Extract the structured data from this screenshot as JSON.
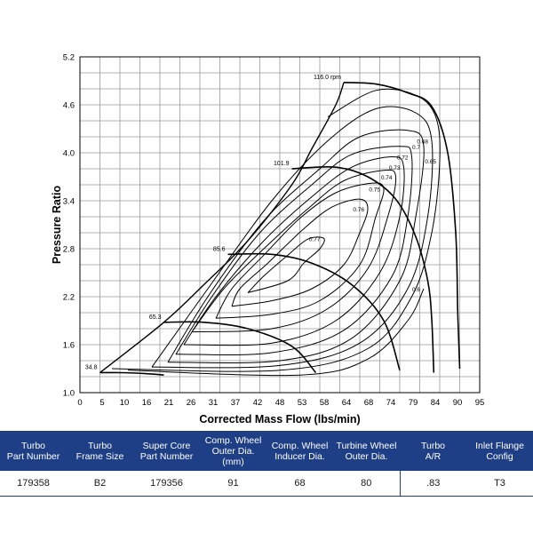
{
  "colors": {
    "header_bg": "#1e3f86",
    "grid": "#999999",
    "line": "#000000"
  },
  "chart_data": {
    "type": "line",
    "title": "",
    "xlabel": "Corrected Mass Flow (lbs/min)",
    "ylabel": "Pressure Ratio",
    "xlim": [
      0,
      100
    ],
    "ylim": [
      1.0,
      5.2
    ],
    "xticks": [
      0,
      5,
      10,
      16,
      21,
      26,
      31,
      37,
      42,
      48,
      53,
      58,
      64,
      68,
      74,
      79,
      84,
      90,
      95
    ],
    "yticks": [
      1.0,
      1.6,
      2.2,
      2.8,
      3.4,
      4.0,
      4.6,
      5.2
    ],
    "grid": true,
    "surge_line": [
      [
        5,
        1.25
      ],
      [
        21,
        1.88
      ],
      [
        31,
        2.35
      ],
      [
        42,
        2.9
      ],
      [
        53,
        3.6
      ],
      [
        58,
        4.05
      ],
      [
        64,
        4.6
      ],
      [
        66,
        4.88
      ]
    ],
    "speed_lines": [
      {
        "label": "34.8",
        "points": [
          [
            5,
            1.25
          ],
          [
            10,
            1.25
          ],
          [
            16,
            1.24
          ],
          [
            21,
            1.22
          ]
        ]
      },
      {
        "label": "65.3",
        "points": [
          [
            21,
            1.88
          ],
          [
            31,
            1.88
          ],
          [
            42,
            1.8
          ],
          [
            53,
            1.58
          ],
          [
            59,
            1.25
          ]
        ]
      },
      {
        "label": "85.6",
        "points": [
          [
            37,
            2.73
          ],
          [
            48,
            2.73
          ],
          [
            58,
            2.62
          ],
          [
            68,
            2.35
          ],
          [
            76,
            1.9
          ],
          [
            80,
            1.28
          ]
        ]
      },
      {
        "label": "101.9",
        "points": [
          [
            53,
            3.8
          ],
          [
            64,
            3.82
          ],
          [
            72,
            3.7
          ],
          [
            79,
            3.42
          ],
          [
            84,
            2.95
          ],
          [
            87,
            2.4
          ],
          [
            88,
            1.92
          ],
          [
            88.5,
            1.25
          ]
        ]
      },
      {
        "label": "116.0",
        "points": [
          [
            66,
            4.88
          ],
          [
            74,
            4.86
          ],
          [
            82,
            4.75
          ],
          [
            88,
            4.58
          ],
          [
            92,
            4.0
          ],
          [
            94,
            3.0
          ],
          [
            94.5,
            2.0
          ],
          [
            95,
            1.3
          ]
        ]
      }
    ],
    "efficiency_islands": [
      {
        "label": "0.77",
        "points": [
          [
            42,
            2.25
          ],
          [
            52,
            2.4
          ],
          [
            56,
            2.62
          ],
          [
            60,
            2.8
          ],
          [
            61,
            2.93
          ],
          [
            57,
            2.92
          ],
          [
            52,
            2.72
          ],
          [
            46,
            2.46
          ],
          [
            42,
            2.25
          ]
        ]
      },
      {
        "label": "0.76",
        "points": [
          [
            38,
            2.08
          ],
          [
            48,
            2.15
          ],
          [
            58,
            2.3
          ],
          [
            66,
            2.6
          ],
          [
            70,
            3.0
          ],
          [
            72,
            3.3
          ],
          [
            70,
            3.42
          ],
          [
            63,
            3.32
          ],
          [
            56,
            3.05
          ],
          [
            47,
            2.62
          ],
          [
            40,
            2.3
          ],
          [
            38,
            2.08
          ]
        ]
      },
      {
        "label": "0.75",
        "points": [
          [
            34,
            1.93
          ],
          [
            48,
            1.98
          ],
          [
            60,
            2.15
          ],
          [
            70,
            2.6
          ],
          [
            74,
            3.2
          ],
          [
            76,
            3.55
          ],
          [
            73,
            3.62
          ],
          [
            64,
            3.5
          ],
          [
            55,
            3.18
          ],
          [
            46,
            2.72
          ],
          [
            38,
            2.3
          ],
          [
            34,
            1.93
          ]
        ]
      },
      {
        "label": "0.74",
        "points": [
          [
            28,
            1.76
          ],
          [
            48,
            1.8
          ],
          [
            62,
            2.05
          ],
          [
            72,
            2.55
          ],
          [
            77,
            3.2
          ],
          [
            79,
            3.7
          ],
          [
            76,
            3.78
          ],
          [
            66,
            3.65
          ],
          [
            57,
            3.3
          ],
          [
            46,
            2.8
          ],
          [
            36,
            2.3
          ],
          [
            28,
            1.76
          ]
        ]
      },
      {
        "label": "0.73",
        "points": [
          [
            26,
            1.6
          ],
          [
            48,
            1.62
          ],
          [
            64,
            1.9
          ],
          [
            75,
            2.5
          ],
          [
            80,
            3.2
          ],
          [
            81,
            3.82
          ],
          [
            78,
            3.95
          ],
          [
            68,
            3.82
          ],
          [
            58,
            3.45
          ],
          [
            46,
            2.9
          ],
          [
            34,
            2.2
          ],
          [
            26,
            1.6
          ]
        ]
      },
      {
        "label": "0.72",
        "points": [
          [
            24,
            1.48
          ],
          [
            48,
            1.5
          ],
          [
            66,
            1.78
          ],
          [
            78,
            2.45
          ],
          [
            82,
            3.2
          ],
          [
            83,
            3.95
          ],
          [
            80,
            4.08
          ],
          [
            68,
            3.98
          ],
          [
            58,
            3.6
          ],
          [
            45,
            3.0
          ],
          [
            33,
            2.2
          ],
          [
            24,
            1.48
          ]
        ]
      },
      {
        "label": "0.7",
        "points": [
          [
            22,
            1.38
          ],
          [
            50,
            1.4
          ],
          [
            68,
            1.68
          ],
          [
            80,
            2.4
          ],
          [
            84,
            3.2
          ],
          [
            86,
            4.08
          ],
          [
            82,
            4.28
          ],
          [
            70,
            4.2
          ],
          [
            60,
            3.8
          ],
          [
            46,
            3.15
          ],
          [
            32,
            2.2
          ],
          [
            22,
            1.38
          ]
        ]
      },
      {
        "label": "0.68",
        "points": [
          [
            18,
            1.32
          ],
          [
            50,
            1.34
          ],
          [
            70,
            1.62
          ],
          [
            82,
            2.3
          ],
          [
            87,
            3.2
          ],
          [
            88,
            4.15
          ],
          [
            84,
            4.5
          ],
          [
            74,
            4.55
          ],
          [
            62,
            4.15
          ],
          [
            48,
            3.4
          ],
          [
            32,
            2.3
          ],
          [
            18,
            1.32
          ]
        ]
      },
      {
        "label": "0.65",
        "points": [
          [
            8,
            1.3
          ],
          [
            50,
            1.28
          ],
          [
            72,
            1.55
          ],
          [
            83,
            2.2
          ],
          [
            88,
            3.0
          ],
          [
            90,
            3.9
          ],
          [
            89,
            4.45
          ],
          [
            84,
            4.72
          ],
          [
            74,
            4.78
          ],
          [
            62,
            4.45
          ]
        ]
      },
      {
        "label": "0.6",
        "points": [
          [
            12,
            1.28
          ],
          [
            55,
            1.22
          ],
          [
            72,
            1.42
          ],
          [
            82,
            1.9
          ],
          [
            86,
            2.3
          ]
        ]
      }
    ]
  },
  "table": {
    "headers": [
      [
        "Turbo",
        "Part Number"
      ],
      [
        "Turbo",
        "Frame Size"
      ],
      [
        "Super Core",
        "Part Number"
      ],
      [
        "Comp. Wheel",
        "Outer Dia. (mm)"
      ],
      [
        "Comp. Wheel",
        "Inducer Dia."
      ],
      [
        "Turbine Wheel",
        "Outer Dia."
      ],
      [
        "Turbo",
        "A/R"
      ],
      [
        "Inlet Flange",
        "Config"
      ]
    ],
    "row": [
      "179358",
      "B2",
      "179356",
      "91",
      "68",
      "80",
      ".83",
      "T3"
    ]
  },
  "labels": {
    "speed_unit": "rpm"
  }
}
